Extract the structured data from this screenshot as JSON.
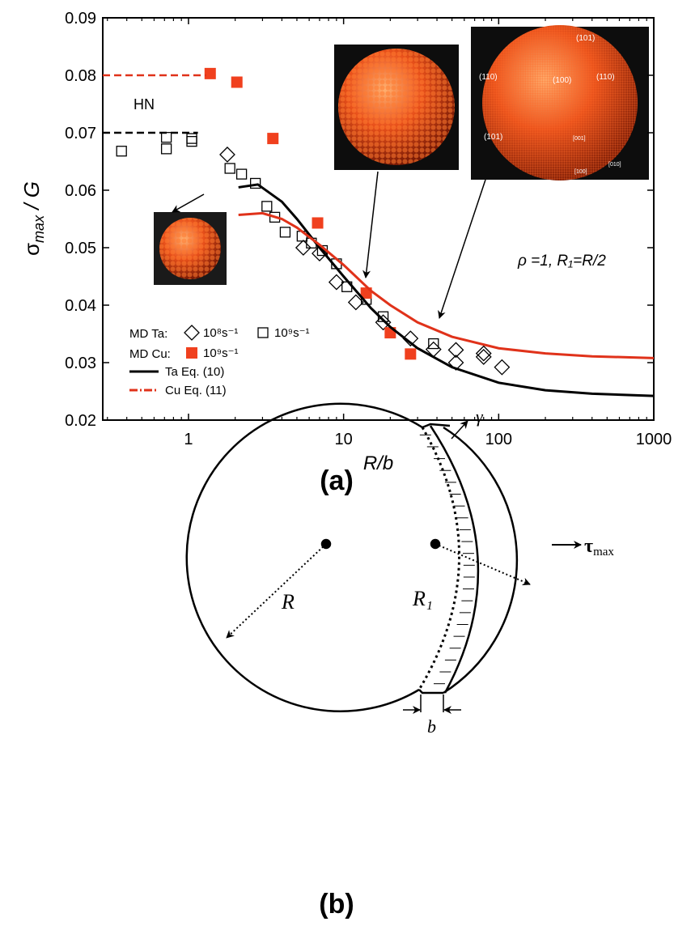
{
  "chart_data": {
    "type": "scatter",
    "panel_label": "(a)",
    "x_label": "R/b",
    "y_label": {
      "symbol": "σ",
      "subscript": "max",
      "rest": " / G"
    },
    "xlim": [
      0.28,
      1000
    ],
    "ylim": [
      0.02,
      0.09
    ],
    "log_x": true,
    "xticks": [
      1,
      10,
      100,
      1000
    ],
    "xminorticks": [
      0.3,
      0.4,
      0.5,
      0.6,
      0.7,
      0.8,
      0.9,
      2,
      3,
      4,
      5,
      6,
      7,
      8,
      9,
      20,
      30,
      40,
      50,
      60,
      70,
      80,
      90,
      200,
      300,
      400,
      500,
      600,
      700,
      800,
      900
    ],
    "yticks": [
      0.02,
      0.03,
      0.04,
      0.05,
      0.06,
      0.07,
      0.08,
      0.09
    ],
    "annotations": [
      "HN",
      "ρ =1, R₁=R/2"
    ],
    "legend_labels": [
      "MD Ta:",
      "MD Cu:"
    ],
    "inset_labels": [
      "(101)",
      "(110)",
      "(100)",
      "(110)",
      "(101)",
      "[001]",
      "[100]",
      "[010]"
    ],
    "series": [
      {
        "name": "10⁸s⁻¹",
        "marker": "diamond",
        "color": "#000000",
        "x": [
          1.78,
          5.5,
          7,
          9,
          12,
          18,
          27,
          38,
          53,
          53,
          80,
          80,
          105
        ],
        "values": [
          0.0662,
          0.05,
          0.049,
          0.044,
          0.0405,
          0.037,
          0.0342,
          0.0323,
          0.0322,
          0.03,
          0.0316,
          0.031,
          0.0292
        ]
      },
      {
        "name": "10⁹s⁻¹",
        "marker": "square",
        "color": "#000000",
        "x": [
          0.37,
          0.72,
          0.72,
          1.05,
          1.05,
          1.85,
          2.2,
          2.7,
          3.2,
          3.6,
          4.2,
          5.4,
          6.2,
          7.3,
          9,
          10.5,
          14,
          18,
          38
        ],
        "values": [
          0.0668,
          0.0692,
          0.0672,
          0.069,
          0.0685,
          0.0638,
          0.0628,
          0.0612,
          0.0572,
          0.0553,
          0.0527,
          0.052,
          0.0508,
          0.0495,
          0.0472,
          0.0432,
          0.041,
          0.038,
          0.0333
        ]
      },
      {
        "name": "10⁹s⁻¹",
        "marker": "filled-square",
        "color": "#f0401e",
        "x": [
          1.38,
          2.05,
          3.5,
          6.8,
          14,
          20,
          27
        ],
        "values": [
          0.0803,
          0.0788,
          0.069,
          0.0543,
          0.0421,
          0.0352,
          0.0315
        ]
      },
      {
        "name": "Ta Eq. (10)",
        "marker": "line",
        "color": "#000000",
        "x": [
          2.1,
          2.8,
          4,
          5,
          7,
          10,
          15,
          20,
          30,
          50,
          100,
          200,
          400,
          1000
        ],
        "values": [
          0.0605,
          0.061,
          0.058,
          0.055,
          0.05,
          0.045,
          0.0395,
          0.0362,
          0.0325,
          0.0292,
          0.0265,
          0.0252,
          0.0246,
          0.0242
        ]
      },
      {
        "name": "Cu Eq. (11)",
        "marker": "line",
        "color": "#e0321a",
        "x": [
          2.1,
          3,
          4,
          5,
          7,
          10,
          15,
          20,
          30,
          50,
          100,
          200,
          400,
          1000
        ],
        "values": [
          0.0557,
          0.056,
          0.055,
          0.0535,
          0.0505,
          0.047,
          0.0425,
          0.04,
          0.037,
          0.0345,
          0.0325,
          0.0316,
          0.0311,
          0.0308
        ]
      },
      {
        "marker": "dashed",
        "color": "#e0321a",
        "x": [
          0.28,
          1.3
        ],
        "values": [
          0.08,
          0.08
        ]
      },
      {
        "marker": "dashed",
        "color": "#000000",
        "x": [
          0.28,
          1.15
        ],
        "values": [
          0.07,
          0.07
        ]
      }
    ]
  },
  "diagram": {
    "panel_label": "(b)",
    "gamma": "γ",
    "tau": "τ",
    "tau_sub": "max",
    "R": "R",
    "R1": "R₁",
    "b": "b"
  }
}
